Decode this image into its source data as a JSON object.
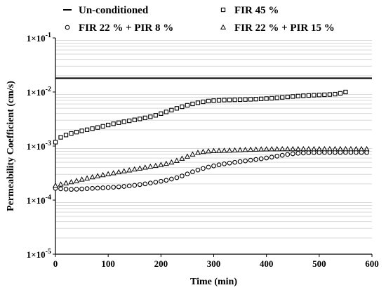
{
  "chart_data": {
    "type": "scatter",
    "xlabel": "Time (min)",
    "ylabel": "Permeability Coefficient (cm/s)",
    "xlim": [
      0,
      600
    ],
    "ylim": [
      1e-05,
      0.1
    ],
    "yscale": "log",
    "grid": "horizontal minor lines",
    "legend_position": "top",
    "x_ticks": [
      {
        "value": 0,
        "label": "0"
      },
      {
        "value": 100,
        "label": "100"
      },
      {
        "value": 200,
        "label": "200"
      },
      {
        "value": 300,
        "label": "300"
      },
      {
        "value": 400,
        "label": "400"
      },
      {
        "value": 500,
        "label": "500"
      },
      {
        "value": 600,
        "label": "600"
      }
    ],
    "y_ticks": [
      {
        "value": 0.1,
        "mantissa": "1×10",
        "exp": "-1"
      },
      {
        "value": 0.01,
        "mantissa": "1×10",
        "exp": "-2"
      },
      {
        "value": 0.001,
        "mantissa": "1×10",
        "exp": "-3"
      },
      {
        "value": 0.0001,
        "mantissa": "1×10",
        "exp": "-4"
      },
      {
        "value": 1e-05,
        "mantissa": "1×10",
        "exp": "-5"
      }
    ],
    "series": [
      {
        "name": "Un-conditioned",
        "marker": "line",
        "x": [
          0,
          600
        ],
        "y": [
          0.018,
          0.018
        ]
      },
      {
        "name": "FIR 45 %",
        "marker": "square",
        "x": [
          0,
          10,
          20,
          30,
          40,
          50,
          60,
          70,
          80,
          90,
          100,
          110,
          120,
          130,
          140,
          150,
          160,
          170,
          180,
          190,
          200,
          210,
          220,
          230,
          240,
          250,
          260,
          270,
          280,
          290,
          300,
          310,
          320,
          330,
          340,
          350,
          360,
          370,
          380,
          390,
          400,
          410,
          420,
          430,
          440,
          450,
          460,
          470,
          480,
          490,
          500,
          510,
          520,
          530,
          540,
          550
        ],
        "y": [
          0.00118,
          0.00145,
          0.0016,
          0.00171,
          0.00181,
          0.00191,
          0.002,
          0.0021,
          0.0022,
          0.00232,
          0.00245,
          0.00258,
          0.0027,
          0.00282,
          0.00293,
          0.00305,
          0.00318,
          0.00332,
          0.00348,
          0.0037,
          0.00398,
          0.00428,
          0.00462,
          0.00498,
          0.00533,
          0.00568,
          0.00602,
          0.00632,
          0.00658,
          0.0068,
          0.00693,
          0.00702,
          0.00708,
          0.00712,
          0.00716,
          0.0072,
          0.00726,
          0.00732,
          0.00738,
          0.00745,
          0.00755,
          0.00767,
          0.0078,
          0.00795,
          0.0081,
          0.00825,
          0.0084,
          0.00852,
          0.00862,
          0.00872,
          0.0088,
          0.00888,
          0.00898,
          0.00912,
          0.00945,
          0.01
        ]
      },
      {
        "name": "FIR 22 % + PIR 8 %",
        "marker": "circle",
        "x": [
          0,
          10,
          20,
          30,
          40,
          50,
          60,
          70,
          80,
          90,
          100,
          110,
          120,
          130,
          140,
          150,
          160,
          170,
          180,
          190,
          200,
          210,
          220,
          230,
          240,
          250,
          260,
          270,
          280,
          290,
          300,
          310,
          320,
          330,
          340,
          350,
          360,
          370,
          380,
          390,
          400,
          410,
          420,
          430,
          440,
          450,
          460,
          470,
          480,
          490,
          500,
          510,
          520,
          530,
          540,
          550,
          560,
          570,
          580,
          590
        ],
        "y": [
          0.000165,
          0.000162,
          0.00016,
          0.000158,
          0.000159,
          0.000161,
          0.000163,
          0.000165,
          0.000167,
          0.000169,
          0.000171,
          0.000173,
          0.000176,
          0.000179,
          0.000183,
          0.000188,
          0.000194,
          0.0002,
          0.000207,
          0.000215,
          0.000223,
          0.000233,
          0.000245,
          0.00026,
          0.00028,
          0.000305,
          0.000333,
          0.00036,
          0.000385,
          0.000408,
          0.00043,
          0.00045,
          0.000468,
          0.000484,
          0.0005,
          0.000516,
          0.000532,
          0.000548,
          0.000565,
          0.000582,
          0.000602,
          0.000625,
          0.00065,
          0.000675,
          0.0007,
          0.00072,
          0.000735,
          0.000745,
          0.000752,
          0.000756,
          0.000758,
          0.00076,
          0.000761,
          0.000762,
          0.000762,
          0.000763,
          0.000763,
          0.000763,
          0.000762,
          0.00076
        ]
      },
      {
        "name": "FIR 22 % + PIR 15 %",
        "marker": "triangle",
        "x": [
          0,
          10,
          20,
          30,
          40,
          50,
          60,
          70,
          80,
          90,
          100,
          110,
          120,
          130,
          140,
          150,
          160,
          170,
          180,
          190,
          200,
          210,
          220,
          230,
          240,
          250,
          260,
          270,
          280,
          290,
          300,
          310,
          320,
          330,
          340,
          350,
          360,
          370,
          380,
          390,
          400,
          410,
          420,
          430,
          440,
          450,
          460,
          470,
          480,
          490,
          500,
          510,
          520,
          530,
          540,
          550,
          560,
          570,
          580,
          590
        ],
        "y": [
          0.000185,
          0.000195,
          0.000205,
          0.000215,
          0.000227,
          0.00024,
          0.000252,
          0.000265,
          0.000278,
          0.00029,
          0.000302,
          0.000315,
          0.000328,
          0.000342,
          0.000356,
          0.00037,
          0.000385,
          0.0004,
          0.000415,
          0.00043,
          0.000448,
          0.00047,
          0.000498,
          0.000535,
          0.000585,
          0.00064,
          0.0007,
          0.00075,
          0.00078,
          0.0008,
          0.00081,
          0.000815,
          0.00082,
          0.000825,
          0.000832,
          0.00084,
          0.000848,
          0.000855,
          0.000862,
          0.000868,
          0.000872,
          0.000875,
          0.000876,
          0.000877,
          0.000877,
          0.000878,
          0.000878,
          0.000878,
          0.000878,
          0.000878,
          0.000878,
          0.000878,
          0.000878,
          0.000879,
          0.000879,
          0.000879,
          0.000879,
          0.000879,
          0.000879,
          0.000879
        ]
      }
    ]
  }
}
